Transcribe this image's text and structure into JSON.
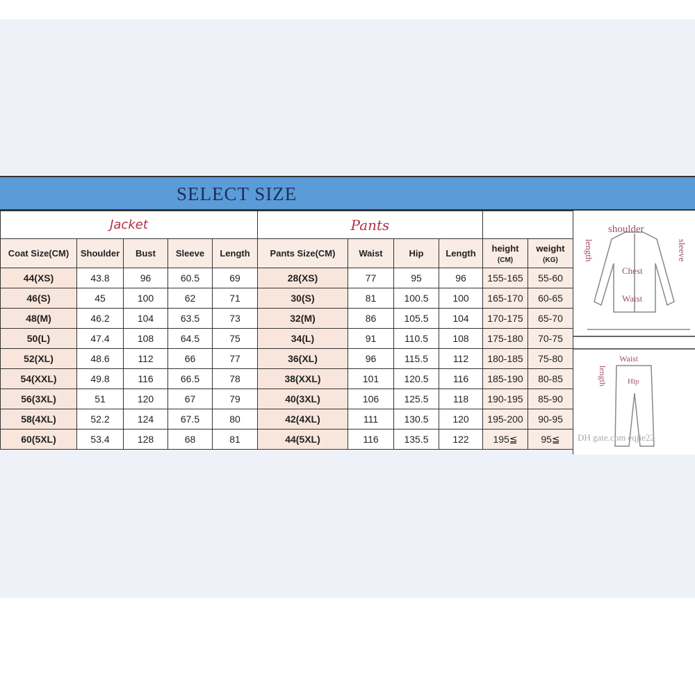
{
  "title": "SELECT SIZE",
  "jacket": {
    "label": "Jacket",
    "headers": [
      "Coat Size(CM)",
      "Shoulder",
      "Bust",
      "Sleeve",
      "Length"
    ],
    "rows": [
      [
        "44(XS)",
        "43.8",
        "96",
        "60.5",
        "69"
      ],
      [
        "46(S)",
        "45",
        "100",
        "62",
        "71"
      ],
      [
        "48(M)",
        "46.2",
        "104",
        "63.5",
        "73"
      ],
      [
        "50(L)",
        "47.4",
        "108",
        "64.5",
        "75"
      ],
      [
        "52(XL)",
        "48.6",
        "112",
        "66",
        "77"
      ],
      [
        "54(XXL)",
        "49.8",
        "116",
        "66.5",
        "78"
      ],
      [
        "56(3XL)",
        "51",
        "120",
        "67",
        "79"
      ],
      [
        "58(4XL)",
        "52.2",
        "124",
        "67.5",
        "80"
      ],
      [
        "60(5XL)",
        "53.4",
        "128",
        "68",
        "81"
      ]
    ]
  },
  "pants": {
    "label": "Pants",
    "headers": [
      "Pants Size(CM)",
      "Waist",
      "Hip",
      "Length"
    ],
    "rows": [
      [
        "28(XS)",
        "77",
        "95",
        "96"
      ],
      [
        "30(S)",
        "81",
        "100.5",
        "100"
      ],
      [
        "32(M)",
        "86",
        "105.5",
        "104"
      ],
      [
        "34(L)",
        "91",
        "110.5",
        "108"
      ],
      [
        "36(XL)",
        "96",
        "115.5",
        "112"
      ],
      [
        "38(XXL)",
        "101",
        "120.5",
        "116"
      ],
      [
        "40(3XL)",
        "106",
        "125.5",
        "118"
      ],
      [
        "42(4XL)",
        "111",
        "130.5",
        "120"
      ],
      [
        "44(5XL)",
        "116",
        "135.5",
        "122"
      ]
    ]
  },
  "body": {
    "headers": [
      {
        "label": "height",
        "unit": "(CM)"
      },
      {
        "label": "weight",
        "unit": "(KG)"
      }
    ],
    "rows": [
      [
        "155-165",
        "55-60"
      ],
      [
        "165-170",
        "60-65"
      ],
      [
        "170-175",
        "65-70"
      ],
      [
        "175-180",
        "70-75"
      ],
      [
        "180-185",
        "75-80"
      ],
      [
        "185-190",
        "80-85"
      ],
      [
        "190-195",
        "85-90"
      ],
      [
        "195-200",
        "90-95"
      ],
      [
        "195≦",
        "95≦"
      ]
    ]
  },
  "diagram": {
    "jacket_labels": [
      "shoulder",
      "length",
      "sleeve",
      "Chest",
      "Waist"
    ],
    "pants_labels": [
      "Waist",
      "length",
      "Hip"
    ],
    "watermark": "DH gate.com eqjie22"
  }
}
